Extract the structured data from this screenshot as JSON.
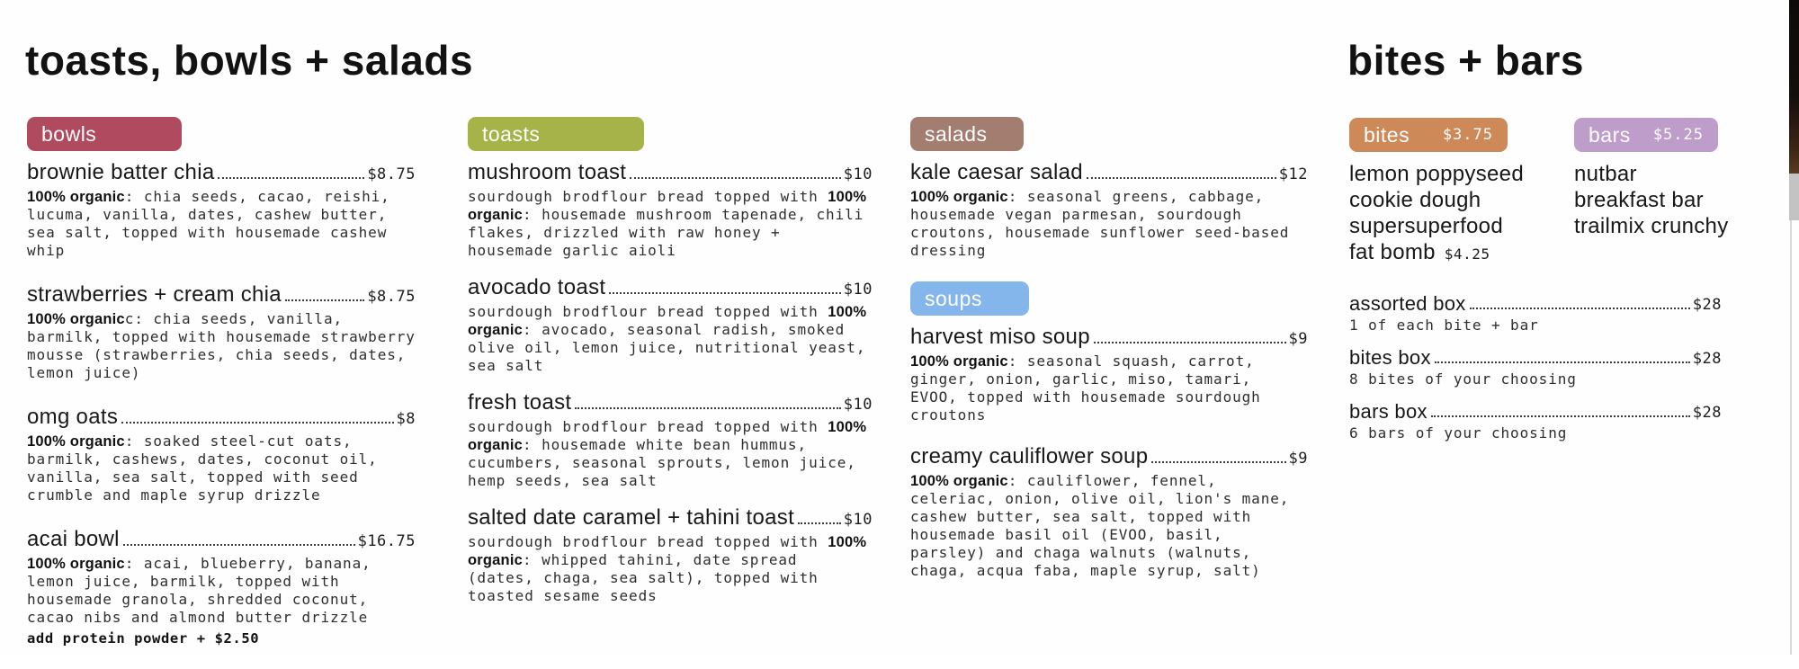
{
  "sections": {
    "left_title": "toasts, bowls + salads",
    "right_title": "bites + bars"
  },
  "colors": {
    "bowls": "#b04a5e",
    "toasts": "#a6b348",
    "salads": "#a37d70",
    "soups": "#84b6eb",
    "bites": "#cd8a58",
    "bars": "#bf9dcb",
    "badge_text": "#ffffff"
  },
  "columns": [
    {
      "blocks": [
        {
          "type": "badge",
          "label": "bowls"
        },
        {
          "type": "item",
          "name": "brownie batter chia",
          "price": "$8.75",
          "desc": [
            {
              "b": 1,
              "t": "100% organic"
            },
            {
              "t": ": chia seeds, cacao, reishi, lucuma, vanilla, dates, cashew butter, sea salt, topped with housemade cashew whip"
            }
          ]
        },
        {
          "type": "item",
          "name": "strawberries + cream chia",
          "price": "$8.75",
          "desc": [
            {
              "b": 1,
              "t": "100% organic"
            },
            {
              "t": "c: chia seeds, vanilla, barmilk, topped with housemade strawberry mousse (strawberries, chia seeds, dates, lemon juice)"
            }
          ]
        },
        {
          "type": "item",
          "name": "omg oats",
          "price": "$8",
          "desc": [
            {
              "b": 1,
              "t": "100% organic"
            },
            {
              "t": ": soaked steel-cut oats, barmilk, cashews, dates, coconut oil, vanilla, sea salt, topped with seed crumble and maple syrup drizzle"
            }
          ]
        },
        {
          "type": "item",
          "name": "acai bowl",
          "price": "$16.75",
          "desc": [
            {
              "b": 1,
              "t": "100% organic"
            },
            {
              "t": ": acai, blueberry, banana, lemon juice, barmilk, topped with housemade granola, shredded coconut, cacao nibs and almond butter drizzle"
            }
          ],
          "note": "add protein powder + $2.50"
        }
      ]
    },
    {
      "blocks": [
        {
          "type": "badge",
          "label": "toasts"
        },
        {
          "type": "item",
          "name": "mushroom toast",
          "price": "$10",
          "desc": [
            {
              "t": "sourdough brodflour bread topped with "
            },
            {
              "b": 1,
              "t": "100% organic"
            },
            {
              "t": ": housemade mushroom tapenade, chili flakes, drizzled with raw honey + housemade garlic aioli"
            }
          ]
        },
        {
          "type": "item",
          "name": "avocado toast",
          "price": "$10",
          "desc": [
            {
              "t": "sourdough brodflour bread topped with "
            },
            {
              "b": 1,
              "t": "100% organic"
            },
            {
              "t": ": avocado, seasonal radish, smoked olive oil, lemon juice, nutritional yeast, sea salt"
            }
          ]
        },
        {
          "type": "item",
          "name": "fresh toast",
          "price": "$10",
          "desc": [
            {
              "t": "sourdough brodflour bread topped with "
            },
            {
              "b": 1,
              "t": "100% organic"
            },
            {
              "t": ": housemade white bean hummus, cucumbers, seasonal sprouts, lemon juice, hemp seeds, sea salt"
            }
          ]
        },
        {
          "type": "item",
          "name": "salted date caramel + tahini toast",
          "price": "$10",
          "desc": [
            {
              "t": "sourdough brodflour bread topped with "
            },
            {
              "b": 1,
              "t": "100% organic"
            },
            {
              "t": ": whipped tahini, date spread (dates, chaga, sea salt), topped with toasted sesame seeds"
            }
          ]
        }
      ]
    },
    {
      "blocks": [
        {
          "type": "badge",
          "label": "salads"
        },
        {
          "type": "item",
          "name": "kale caesar salad",
          "price": "$12",
          "desc": [
            {
              "b": 1,
              "t": "100% organic"
            },
            {
              "t": ": seasonal greens, cabbage, housemade vegan parmesan, sourdough croutons, housemade sunflower seed-based dressing"
            }
          ]
        },
        {
          "type": "badge",
          "label": "soups"
        },
        {
          "type": "item",
          "name": "harvest miso soup",
          "price": "$9",
          "desc": [
            {
              "b": 1,
              "t": "100% organic"
            },
            {
              "t": ": seasonal squash, carrot, ginger, onion, garlic, miso, tamari, EVOO, topped with housemade sourdough croutons"
            }
          ]
        },
        {
          "type": "item",
          "name": "creamy cauliflower soup",
          "price": "$9",
          "desc": [
            {
              "b": 1,
              "t": "100% organic"
            },
            {
              "t": ": cauliflower, fennel, celeriac, onion, olive oil, lion's mane, cashew butter, sea salt, topped with housemade basil oil (EVOO, basil, parsley) and chaga walnuts (walnuts, chaga, acqua faba, maple syrup, salt)"
            }
          ]
        }
      ]
    }
  ],
  "bites_bars": {
    "bites": {
      "badge": {
        "label": "bites",
        "price": "$3.75"
      },
      "items": [
        {
          "name": "lemon poppyseed"
        },
        {
          "name": "cookie dough"
        },
        {
          "name": "supersuperfood"
        },
        {
          "name": "fat bomb",
          "price": "$4.25"
        }
      ]
    },
    "bars": {
      "badge": {
        "label": "bars",
        "price": "$5.25"
      },
      "items": [
        {
          "name": "nutbar"
        },
        {
          "name": "breakfast bar"
        },
        {
          "name": "trailmix crunchy"
        }
      ]
    },
    "boxes": [
      {
        "name": "assorted box",
        "price": "$28",
        "sub": "1 of each bite + bar"
      },
      {
        "name": "bites box",
        "price": "$28",
        "sub": "8 bites of your choosing"
      },
      {
        "name": "bars box",
        "price": "$28",
        "sub": "6 bars of your choosing"
      }
    ]
  }
}
